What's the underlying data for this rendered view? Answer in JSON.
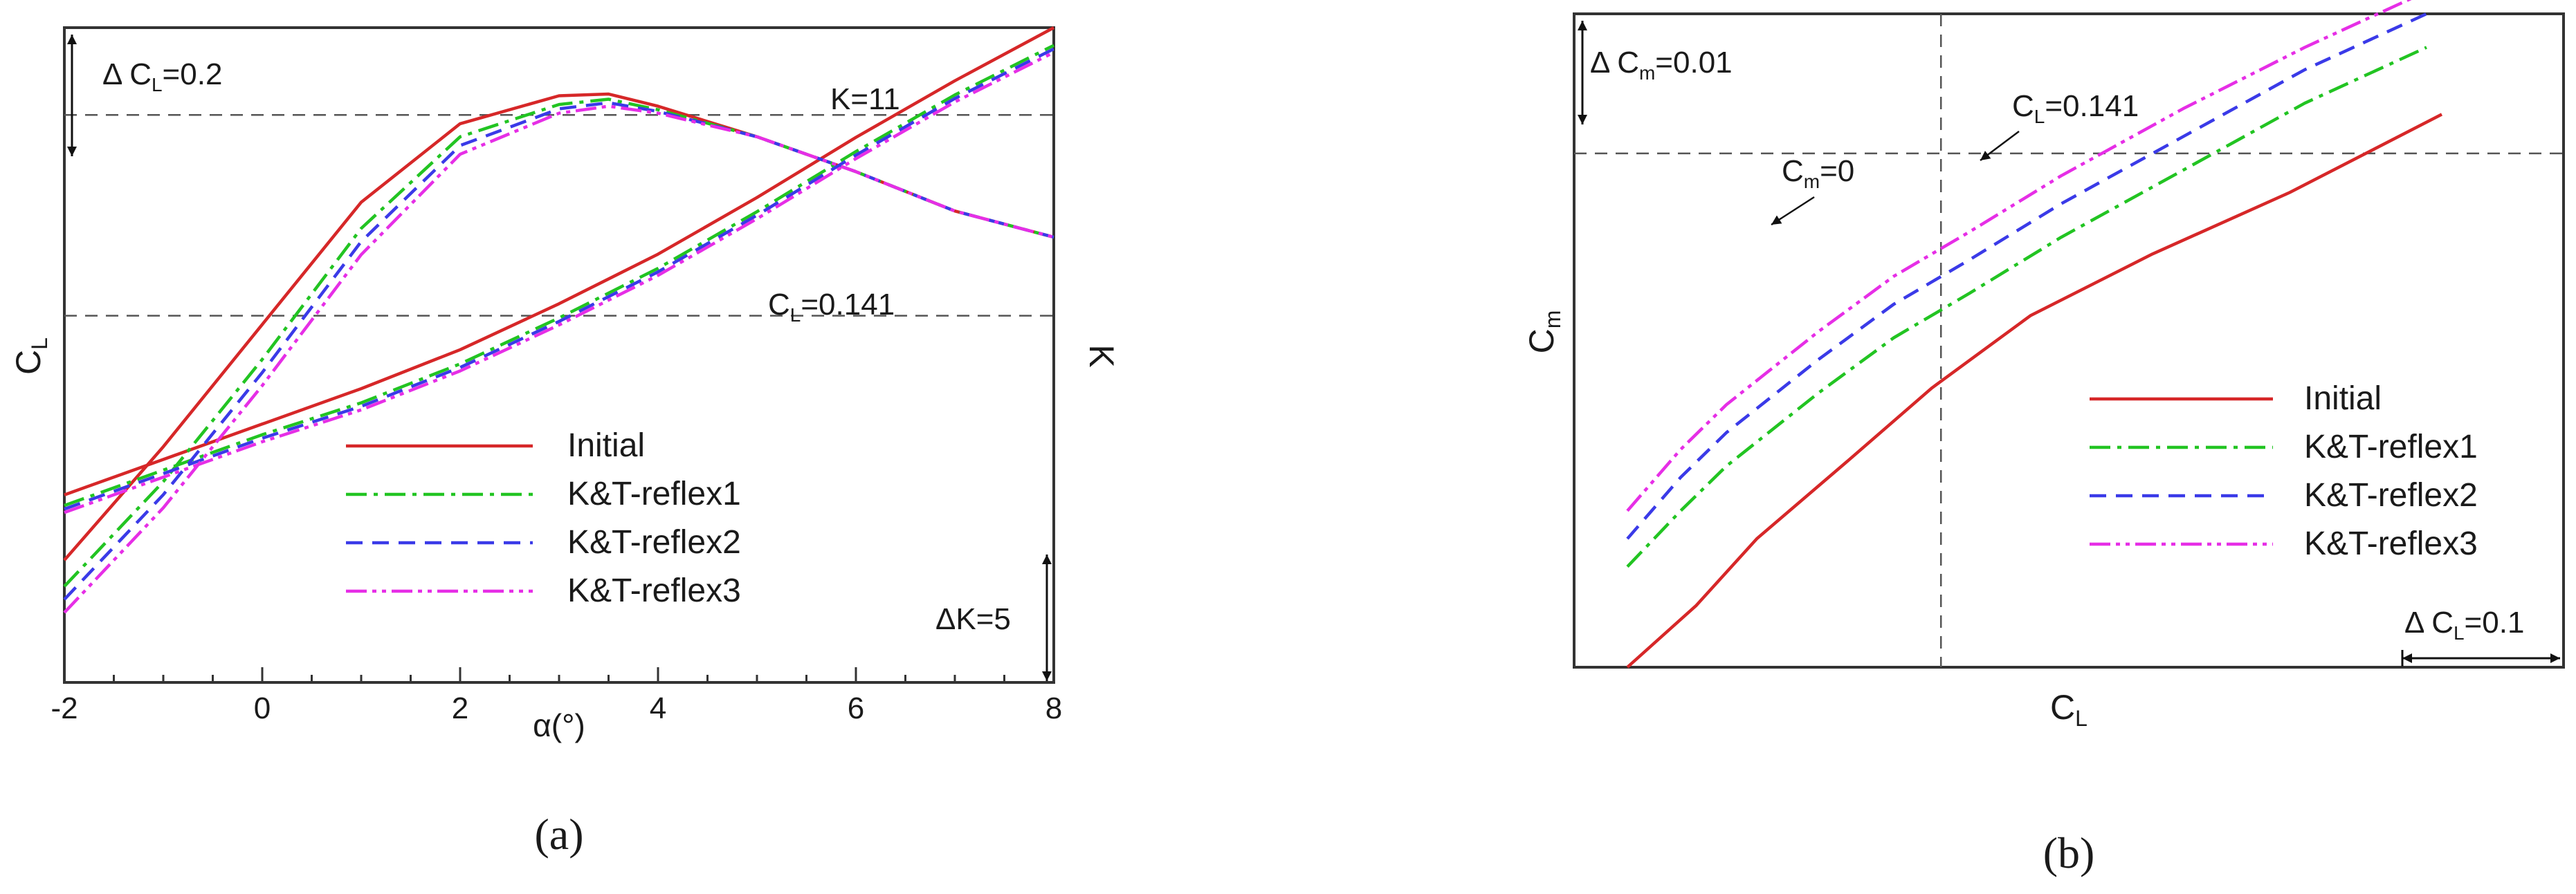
{
  "chart_data": [
    {
      "id": "a",
      "type": "line",
      "caption": "(a)",
      "x_ticks": [
        "-2",
        "0",
        "2",
        "4",
        "6",
        "8"
      ],
      "x_tick_values": [
        -2,
        0,
        2,
        4,
        6,
        8
      ],
      "xlim": [
        -2,
        8
      ],
      "xlabel": "α(°)",
      "ylabel_left": {
        "main": "C",
        "sub": "L"
      },
      "ylabel_right": "K",
      "cl_range": [
        -0.05,
        0.7
      ],
      "k_range": [
        -5,
        13.5
      ],
      "ref_lines": [
        {
          "axis": "CL",
          "value": 0.6,
          "label": "K=11"
        },
        {
          "axis": "CL",
          "value": 0.37,
          "label_main": "C",
          "label_sub": "L",
          "label_rest": "=0.141"
        }
      ],
      "scale_bars": [
        {
          "label_pre": "Δ C",
          "label_sub": "L",
          "label_rest": "=0.2",
          "delta": 0.2,
          "axis": "CL"
        },
        {
          "label": "ΔK=5",
          "delta": 5,
          "axis": "K"
        }
      ],
      "series": [
        {
          "name": "Initial",
          "color": "#d62728",
          "dash": "solid",
          "cl_alpha": [
            -2,
            -1,
            0,
            1,
            2,
            3,
            3.5,
            4,
            5,
            6,
            7,
            8
          ],
          "cl": [
            0.09,
            0.22,
            0.36,
            0.5,
            0.59,
            0.622,
            0.624,
            0.61,
            0.575,
            0.535,
            0.49,
            0.46
          ],
          "k_alpha": [
            -2,
            -1,
            0,
            1,
            2,
            3,
            4,
            5,
            6,
            7,
            8
          ],
          "k": [
            0.3,
            1.3,
            2.3,
            3.3,
            4.4,
            5.7,
            7.1,
            8.7,
            10.4,
            12.0,
            13.5
          ]
        },
        {
          "name": "K&T-reflex1",
          "color": "#22c422",
          "dash": "dashdot",
          "cl_alpha": [
            -2,
            -1,
            0,
            1,
            2,
            3,
            3.5,
            4,
            5,
            6,
            7,
            8
          ],
          "cl": [
            0.06,
            0.18,
            0.32,
            0.47,
            0.575,
            0.612,
            0.618,
            0.606,
            0.575,
            0.535,
            0.49,
            0.46
          ],
          "k_alpha": [
            -2,
            -1,
            0,
            1,
            2,
            3,
            4,
            5,
            6,
            7,
            8
          ],
          "k": [
            0.0,
            1.0,
            2.0,
            2.9,
            4.0,
            5.3,
            6.7,
            8.3,
            10.0,
            11.6,
            13.0
          ]
        },
        {
          "name": "K&T-reflex2",
          "color": "#3a3ae8",
          "dash": "dashed",
          "cl_alpha": [
            -2,
            -1,
            0,
            1,
            2,
            3,
            3.5,
            4,
            5,
            6,
            7,
            8
          ],
          "cl": [
            0.045,
            0.165,
            0.305,
            0.455,
            0.565,
            0.607,
            0.614,
            0.604,
            0.575,
            0.535,
            0.49,
            0.46
          ],
          "k_alpha": [
            -2,
            -1,
            0,
            1,
            2,
            3,
            4,
            5,
            6,
            7,
            8
          ],
          "k": [
            -0.1,
            0.9,
            1.9,
            2.8,
            3.9,
            5.2,
            6.6,
            8.2,
            9.9,
            11.5,
            12.9
          ]
        },
        {
          "name": "K&T-reflex3",
          "color": "#e62ee6",
          "dash": "dashdotdot",
          "cl_alpha": [
            -2,
            -1,
            0,
            1,
            2,
            3,
            3.5,
            4,
            5,
            6,
            7,
            8
          ],
          "cl": [
            0.03,
            0.15,
            0.29,
            0.44,
            0.555,
            0.602,
            0.61,
            0.602,
            0.575,
            0.535,
            0.49,
            0.46
          ],
          "k_alpha": [
            -2,
            -1,
            0,
            1,
            2,
            3,
            4,
            5,
            6,
            7,
            8
          ],
          "k": [
            -0.2,
            0.8,
            1.8,
            2.7,
            3.8,
            5.1,
            6.5,
            8.1,
            9.8,
            11.4,
            12.8
          ]
        }
      ]
    },
    {
      "id": "b",
      "type": "line",
      "caption": "(b)",
      "xlabel": {
        "main": "C",
        "sub": "L"
      },
      "ylabel": {
        "main": "C",
        "sub": "m"
      },
      "xlim": [
        -0.1,
        0.55
      ],
      "ylim": [
        -0.046,
        0.0125
      ],
      "ref_lines": [
        {
          "axis": "y",
          "value": 0.0,
          "label_main": "C",
          "label_sub": "m",
          "label_rest": "=0"
        },
        {
          "axis": "x",
          "value": 0.141,
          "label_main": "C",
          "label_sub": "L",
          "label_rest": "=0.141"
        }
      ],
      "scale_bars": [
        {
          "label_pre": "Δ C",
          "label_sub": "m",
          "label_rest": "=0.01",
          "delta": 0.01,
          "axis": "y"
        },
        {
          "label_pre": "Δ C",
          "label_sub": "L",
          "label_rest": "=0.1",
          "delta": 0.1,
          "axis": "x"
        }
      ],
      "series": [
        {
          "name": "Initial",
          "color": "#d62728",
          "dash": "solid",
          "x": [
            -0.065,
            -0.02,
            0.02,
            0.08,
            0.135,
            0.15,
            0.2,
            0.28,
            0.37,
            0.47
          ],
          "y": [
            -0.046,
            -0.0405,
            -0.0345,
            -0.0275,
            -0.021,
            -0.0195,
            -0.0145,
            -0.009,
            -0.0035,
            0.0035
          ]
        },
        {
          "name": "K&T-reflex1",
          "color": "#22c422",
          "dash": "dashdot",
          "x": [
            -0.065,
            -0.03,
            0.0,
            0.06,
            0.11,
            0.16,
            0.22,
            0.3,
            0.38,
            0.46
          ],
          "y": [
            -0.037,
            -0.032,
            -0.028,
            -0.0215,
            -0.0165,
            -0.0125,
            -0.0075,
            -0.0015,
            0.0045,
            0.0095
          ]
        },
        {
          "name": "K&T-reflex2",
          "color": "#3a3ae8",
          "dash": "dashed",
          "x": [
            -0.065,
            -0.03,
            0.0,
            0.06,
            0.11,
            0.16,
            0.22,
            0.3,
            0.38,
            0.46
          ],
          "y": [
            -0.0345,
            -0.029,
            -0.025,
            -0.0185,
            -0.0135,
            -0.0095,
            -0.0045,
            0.0015,
            0.0075,
            0.0125
          ]
        },
        {
          "name": "K&T-reflex3",
          "color": "#e62ee6",
          "dash": "dashdotdot",
          "x": [
            -0.065,
            -0.03,
            0.0,
            0.06,
            0.11,
            0.16,
            0.22,
            0.3,
            0.38,
            0.46
          ],
          "y": [
            -0.032,
            -0.0265,
            -0.0225,
            -0.016,
            -0.011,
            -0.007,
            -0.002,
            0.004,
            0.0095,
            0.0145
          ]
        }
      ]
    }
  ]
}
